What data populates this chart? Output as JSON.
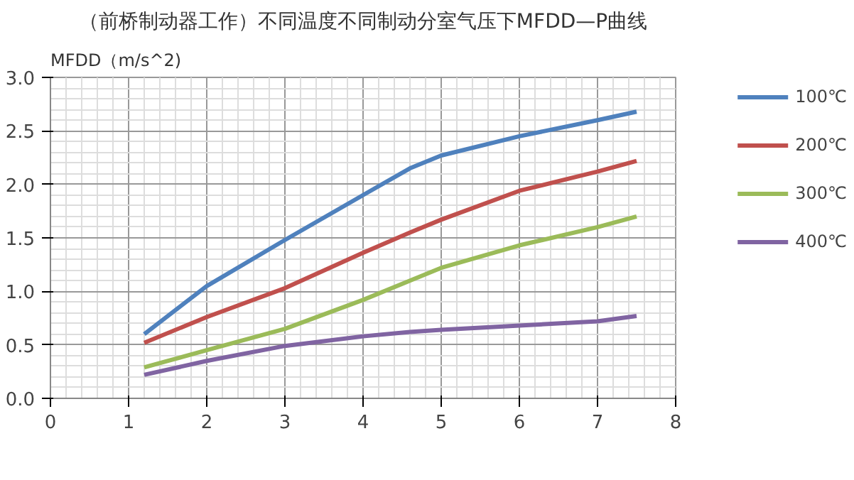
{
  "chart_data": {
    "type": "line",
    "title": "（前桥制动器工作）不同温度不同制动分室气压下MFDD—P曲线",
    "ylabel": "MFDD（m/s^2)",
    "x": [
      1.2,
      2,
      3,
      4,
      4.6,
      5,
      6,
      7,
      7.5
    ],
    "series": [
      {
        "name": "100℃",
        "color": "#4f81bd",
        "values": [
          0.6,
          1.05,
          1.48,
          1.9,
          2.15,
          2.27,
          2.45,
          2.6,
          2.68
        ]
      },
      {
        "name": "200℃",
        "color": "#c0504d",
        "values": [
          0.52,
          0.76,
          1.03,
          1.36,
          1.55,
          1.67,
          1.94,
          2.12,
          2.22
        ]
      },
      {
        "name": "300℃",
        "color": "#9bbb59",
        "values": [
          0.29,
          0.45,
          0.65,
          0.92,
          1.1,
          1.22,
          1.43,
          1.6,
          1.7
        ]
      },
      {
        "name": "400℃",
        "color": "#8064a2",
        "values": [
          0.22,
          0.35,
          0.49,
          0.58,
          0.62,
          0.64,
          0.68,
          0.72,
          0.77
        ]
      }
    ],
    "xlim": [
      0,
      8
    ],
    "xticks": [
      0,
      1,
      2,
      3,
      4,
      5,
      6,
      7,
      8
    ],
    "ylim": [
      0,
      3
    ],
    "yticks": [
      {
        "value": 0,
        "label": "0.0"
      },
      {
        "value": 0.5,
        "label": "0.5"
      },
      {
        "value": 1,
        "label": "1.0"
      },
      {
        "value": 1.5,
        "label": "1.5"
      },
      {
        "value": 2,
        "label": "2.0"
      },
      {
        "value": 2.5,
        "label": "2.5"
      },
      {
        "value": 3,
        "label": "3.0"
      }
    ],
    "grid": true,
    "legend": "right"
  }
}
